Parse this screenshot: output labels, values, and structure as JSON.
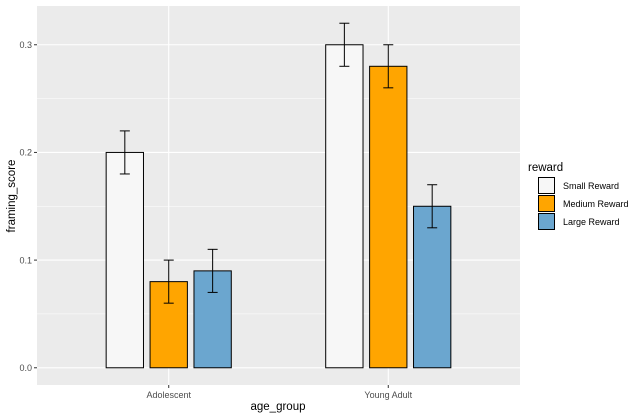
{
  "chart_data": {
    "type": "bar",
    "title": "",
    "xlabel": "age_group",
    "ylabel": "framing_score",
    "categories": [
      "Adolescent",
      "Young Adult"
    ],
    "ylim": [
      -0.016,
      0.336
    ],
    "yticks": [
      0.0,
      0.1,
      0.2,
      0.3
    ],
    "ytick_labels": [
      "0.0",
      "0.1",
      "0.2",
      "0.3"
    ],
    "grid": true,
    "legend": {
      "title": "reward",
      "placement": "right"
    },
    "series": [
      {
        "name": "Small Reward",
        "color": "#f7f7f7",
        "values": [
          0.2,
          0.3
        ],
        "error": [
          0.02,
          0.02
        ]
      },
      {
        "name": "Medium Reward",
        "color": "#ffa500",
        "values": [
          0.08,
          0.28
        ],
        "error": [
          0.02,
          0.02
        ]
      },
      {
        "name": "Large Reward",
        "color": "#6ba6cf",
        "values": [
          0.09,
          0.15
        ],
        "error": [
          0.02,
          0.02
        ]
      }
    ]
  }
}
